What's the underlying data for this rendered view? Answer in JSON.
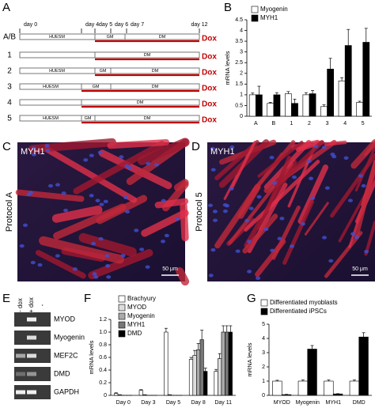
{
  "panels": {
    "labels": [
      "A",
      "B",
      "C",
      "D",
      "E",
      "F",
      "G"
    ]
  },
  "protocol": {
    "days": [
      "day 0",
      "day 4",
      "day 5",
      "day 6",
      "day 7",
      "day 12"
    ],
    "rows": [
      {
        "label": "A/B",
        "segments": [
          "HUESM",
          "GM",
          "DM"
        ],
        "treatment": "Dox"
      },
      {
        "label": "1",
        "segments": [
          "DM"
        ],
        "treatment": "Dox"
      },
      {
        "label": "2",
        "segments": [
          "HUESM",
          "GM",
          "DM"
        ],
        "treatment": "Dox"
      },
      {
        "label": "3",
        "segments": [
          "HUESM",
          "GM",
          "DM"
        ],
        "treatment": "Dox"
      },
      {
        "label": "4",
        "segments": [
          "DM"
        ],
        "treatment": "Dox"
      },
      {
        "label": "5",
        "segments": [
          "HUESM",
          "GM",
          "DM"
        ],
        "treatment": "Dox"
      }
    ]
  },
  "images": [
    {
      "stain": "MYH1",
      "condition": "Protocol A",
      "scale": "50 μm"
    },
    {
      "stain": "MYH1",
      "condition": "Protocol 5",
      "scale": "50 μm"
    }
  ],
  "gel": {
    "lanes": [
      "- dox",
      "+ dox",
      "-"
    ],
    "genes": [
      "MYOD",
      "Myogenin",
      "MEF2C",
      "DMD",
      "GAPDH"
    ]
  },
  "chart_data": [
    {
      "type": "bar",
      "y_label": "mRNA levels",
      "legend": "upper left",
      "categories": [
        "A",
        "B",
        "1",
        "2",
        "3",
        "4",
        "5"
      ],
      "series": [
        {
          "name": "Myogenin",
          "color": "#ffffff",
          "values": [
            1.0,
            0.6,
            1.05,
            1.0,
            0.45,
            1.65,
            0.65
          ],
          "errors": [
            0.08,
            0.05,
            0.1,
            0.1,
            0.08,
            0.15,
            0.05
          ]
        },
        {
          "name": "MYH1",
          "color": "#000000",
          "values": [
            1.0,
            1.0,
            0.6,
            1.05,
            2.2,
            3.3,
            3.45
          ],
          "errors": [
            0.4,
            0.1,
            0.2,
            0.15,
            0.5,
            0.75,
            0.65
          ]
        }
      ],
      "ylim": [
        0,
        4.5
      ],
      "yticks": [
        0,
        0.5,
        1,
        1.5,
        2,
        2.5,
        3,
        3.5,
        4,
        4.5
      ]
    },
    {
      "type": "bar",
      "y_label": "mRNA levels",
      "legend": "upper left",
      "categories": [
        "Day 0",
        "Day 3",
        "Day 5",
        "Day 8",
        "Day 11"
      ],
      "series": [
        {
          "name": "Brachyury",
          "color": "#ffffff",
          "values": [
            0.03,
            0.08,
            1.0,
            0.57,
            0.38
          ],
          "errors": [
            0.01,
            0.01,
            0.06,
            0.03,
            0.03
          ]
        },
        {
          "name": "MYOD",
          "color": "#dddddd",
          "values": [
            0.01,
            0.01,
            0.01,
            0.63,
            0.58
          ],
          "errors": [
            0.0,
            0.0,
            0.0,
            0.08,
            0.08
          ]
        },
        {
          "name": "Myogenin",
          "color": "#aaaaaa",
          "values": [
            0.0,
            0.0,
            0.0,
            0.72,
            1.0
          ],
          "errors": [
            0.0,
            0.0,
            0.0,
            0.1,
            0.1
          ]
        },
        {
          "name": "MYH1",
          "color": "#777777",
          "values": [
            0.0,
            0.0,
            0.0,
            0.88,
            1.0
          ],
          "errors": [
            0.0,
            0.0,
            0.0,
            0.15,
            0.1
          ]
        },
        {
          "name": "DMD",
          "color": "#000000",
          "values": [
            0.0,
            0.0,
            0.0,
            0.38,
            1.0
          ],
          "errors": [
            0.0,
            0.0,
            0.0,
            0.05,
            0.1
          ]
        }
      ],
      "ylim": [
        0,
        1.2
      ],
      "yticks": [
        0,
        {
          "value": 0.2,
          "label": "0.2"
        },
        {
          "value": 0.4,
          "label": "0.4"
        },
        {
          "value": 0.6,
          "label": "0.6"
        },
        {
          "value": 0.8,
          "label": "0.8"
        },
        {
          "value": 1,
          "label": "1.0"
        },
        {
          "value": 1.2,
          "label": "1.2"
        }
      ]
    },
    {
      "type": "bar",
      "y_label": "mRNA levels",
      "legend": "upper left",
      "categories": [
        "MYOD",
        "Myogenin",
        "MYH1",
        "DMD"
      ],
      "series": [
        {
          "name": "Differentiated myoblasts",
          "color": "#ffffff",
          "values": [
            1.0,
            1.0,
            1.0,
            1.0
          ],
          "errors": [
            0.06,
            0.08,
            0.08,
            0.08
          ]
        },
        {
          "name": "Differentiated iPSCs",
          "color": "#000000",
          "values": [
            0.05,
            3.25,
            0.1,
            4.1
          ],
          "errors": [
            0.02,
            0.25,
            0.02,
            0.3
          ]
        }
      ],
      "ylim": [
        0,
        5
      ],
      "yticks": [
        0,
        1,
        2,
        3,
        4,
        5
      ]
    }
  ]
}
